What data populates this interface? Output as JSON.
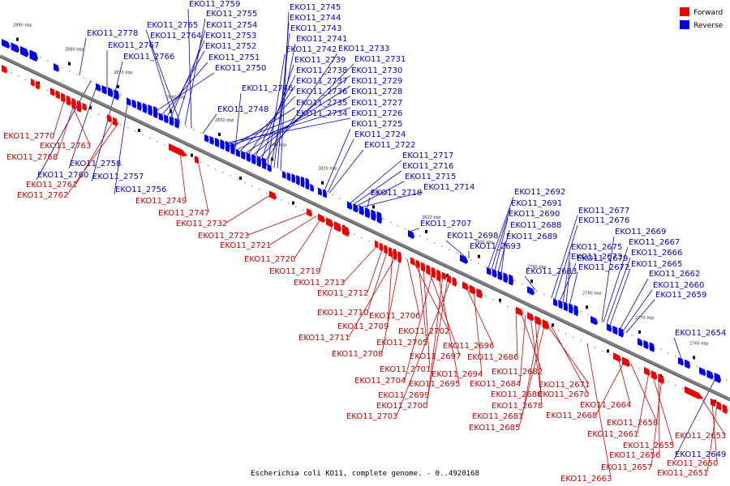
{
  "caption": "Escherichia coli KO11, complete genome. - 0..4920168",
  "legend": [
    {
      "label": "Forward",
      "color": "#ee0000"
    },
    {
      "label": "Reverse",
      "color": "#0000ee"
    }
  ],
  "colors": {
    "forward": "#ee0000",
    "reverse": "#0000ee",
    "backbone": "#808080",
    "forward_leader": "#cc0000",
    "reverse_leader": "#0000cc"
  },
  "ticks": [
    "2890 kbp",
    "2880 kbp",
    "2870 kbp",
    "2860 kbp",
    "2850 kbp",
    "2840 kbp",
    "2830 kbp",
    "2820 kbp",
    "2810 kbp",
    "2800 kbp",
    "2790 kbp",
    "2780 kbp",
    "2770 kbp",
    "2760 kbp"
  ],
  "reverse_labels": [
    "EKO11_2759",
    "EKO11_2755",
    "EKO11_2765",
    "EKO11_2754",
    "EKO11_2764",
    "EKO11_2753",
    "EKO11_2778",
    "EKO11_2767",
    "EKO11_2752",
    "EKO11_2766",
    "EKO11_2751",
    "EKO11_2750",
    "EKO11_2745",
    "EKO11_2744",
    "EKO11_2743",
    "EKO11_2741",
    "EKO11_2742",
    "EKO11_2733",
    "EKO11_2739",
    "EKO11_2731",
    "EKO11_2738",
    "EKO11_2730",
    "EKO11_2737",
    "EKO11_2729",
    "EKO11_2746",
    "EKO11_2736",
    "EKO11_2728",
    "EKO11_2735",
    "EKO11_2727",
    "EKO11_2748",
    "EKO11_2734",
    "EKO11_2726",
    "EKO11_2725",
    "EKO11_2724",
    "EKO11_2722",
    "EKO11_2717",
    "EKO11_2716",
    "EKO11_2715",
    "EKO11_2758",
    "EKO11_2714",
    "EKO11_2760",
    "EKO11_2757",
    "EKO11_2718",
    "EKO11_2756",
    "EKO11_2692",
    "EKO11_2691",
    "EKO11_2690",
    "EKO11_2677",
    "EKO11_2707",
    "EKO11_2688",
    "EKO11_2676",
    "EKO11_2698",
    "EKO11_2689",
    "EKO11_2669",
    "EKO11_2693",
    "EKO11_2679",
    "EKO11_2667",
    "EKO11_2675",
    "EKO11_2673",
    "EKO11_2666",
    "EKO11_2665",
    "EKO11_2683",
    "EKO11_2672",
    "EKO11_2662",
    "EKO11_2660",
    "EKO11_2659",
    "EKO11_2654",
    "EKO11_2649"
  ],
  "forward_labels": [
    "EKO11_2770",
    "EKO11_2763",
    "EKO11_2768",
    "EKO11_2761",
    "EKO11_2762",
    "EKO11_2749",
    "EKO11_2747",
    "EKO11_2732",
    "EKO11_2723",
    "EKO11_2721",
    "EKO11_2720",
    "EKO11_2719",
    "EKO11_2713",
    "EKO11_2712",
    "EKO11_2710",
    "EKO11_2706",
    "EKO11_2709",
    "EKO11_2711",
    "EKO11_2702",
    "EKO11_2705",
    "EKO11_2696",
    "EKO11_2708",
    "EKO11_2697",
    "EKO11_2686",
    "EKO11_2701",
    "EKO11_2694",
    "EKO11_2682",
    "EKO11_2704",
    "EKO11_2695",
    "EKO11_2684",
    "EKO11_2671",
    "EKO11_2699",
    "EKO11_2680",
    "EKO11_2670",
    "EKO11_2700",
    "EKO11_2678",
    "EKO11_2664",
    "EKO11_2703",
    "EKO11_2681",
    "EKO11_2668",
    "EKO11_2685",
    "EKO11_2658",
    "EKO11_2661",
    "EKO11_2653",
    "EKO11_2655",
    "EKO11_2656",
    "EKO11_2650",
    "EKO11_2657",
    "EKO11_2651",
    "EKO11_2663"
  ]
}
